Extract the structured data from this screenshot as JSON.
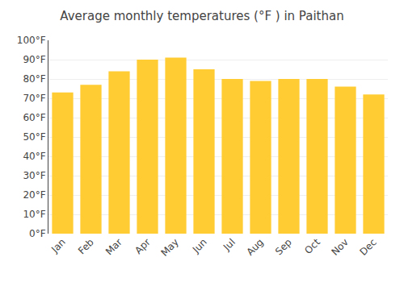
{
  "chart_data": {
    "type": "bar",
    "title": "Average monthly temperatures (°F ) in Paithan",
    "categories": [
      "Jan",
      "Feb",
      "Mar",
      "Apr",
      "May",
      "Jun",
      "Jul",
      "Aug",
      "Sep",
      "Oct",
      "Nov",
      "Dec"
    ],
    "values": [
      73,
      77,
      84,
      90,
      91,
      85,
      80,
      79,
      80,
      80,
      76,
      72
    ],
    "color": "#FFCC33",
    "ylim": [
      0,
      100
    ],
    "yticks": [
      {
        "value": 0,
        "label": "0°F"
      },
      {
        "value": 10,
        "label": "10°F"
      },
      {
        "value": 20,
        "label": "20°F"
      },
      {
        "value": 30,
        "label": "30°F"
      },
      {
        "value": 40,
        "label": "40°F"
      },
      {
        "value": 50,
        "label": "50°F"
      },
      {
        "value": 60,
        "label": "60°F"
      },
      {
        "value": 70,
        "label": "70°F"
      },
      {
        "value": 80,
        "label": "80°F"
      },
      {
        "value": 90,
        "label": "90°F"
      },
      {
        "value": 100,
        "label": "100°F"
      }
    ],
    "grid": true
  }
}
